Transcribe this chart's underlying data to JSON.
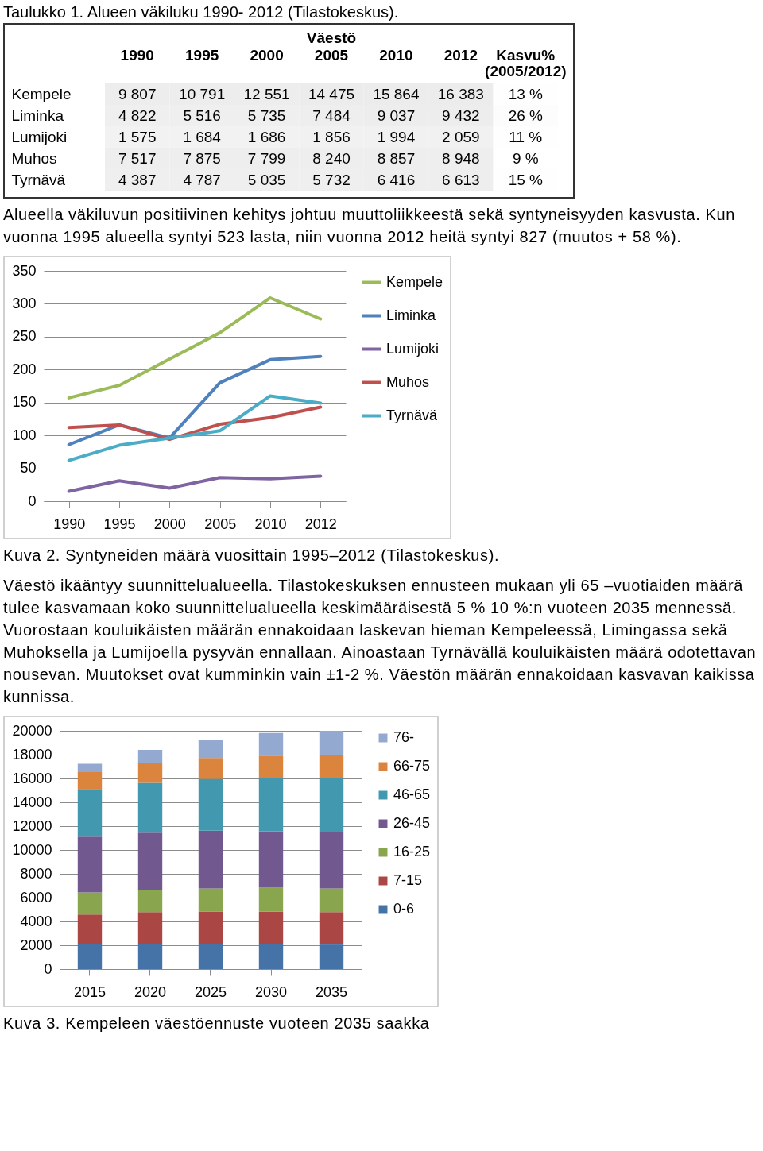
{
  "chart_data": [
    {
      "type": "heatmap",
      "title": "Taulukko 1. Alueen väkiluku 1990- 2012 (Tilastokeskus).",
      "subtitle": "Väestö",
      "categories": [
        "1990",
        "1995",
        "2000",
        "2005",
        "2010",
        "2012",
        "Kasvu% (2005/2012)"
      ],
      "y_categories": [
        "Kempele",
        "Liminka",
        "Lumijoki",
        "Muhos",
        "Tyrnävä"
      ],
      "cells": [
        [
          9807,
          10791,
          12551,
          14475,
          15864,
          16383,
          13
        ],
        [
          4822,
          5516,
          5735,
          7484,
          9037,
          9432,
          26
        ],
        [
          1575,
          1684,
          1686,
          1856,
          1994,
          2059,
          11
        ],
        [
          7517,
          7875,
          7799,
          8240,
          8857,
          8948,
          9
        ],
        [
          4387,
          4787,
          5035,
          5732,
          6416,
          6613,
          15
        ]
      ],
      "cell_labels": [
        [
          "9 807",
          "10 791",
          "12 551",
          "14 475",
          "15 864",
          "16 383",
          "13 %"
        ],
        [
          "4 822",
          "5 516",
          "5 735",
          "7 484",
          "9 037",
          "9 432",
          "26 %"
        ],
        [
          "1 575",
          "1 684",
          "1 686",
          "1 856",
          "1 994",
          "2 059",
          "11 %"
        ],
        [
          "7 517",
          "7 875",
          "7 799",
          "8 240",
          "8 857",
          "8 948",
          "9 %"
        ],
        [
          "4 387",
          "4 787",
          "5 035",
          "5 732",
          "6 416",
          "6 613",
          "15 %"
        ]
      ],
      "annotations": [
        "Alueella väkiluvun positiivinen kehitys johtuu muuttoliikkeestä sekä syntyneisyyden kasvusta. Kun vuonna 1995 alueella syntyi 523 lasta, niin vuonna 2012 heitä syntyi 827 (muutos + 58 %)."
      ]
    },
    {
      "type": "line",
      "categories": [
        "1990",
        "1995",
        "2000",
        "2005",
        "2010",
        "2012"
      ],
      "series": [
        {
          "name": "Kempele",
          "color": "#9bbb59",
          "values": [
            157,
            176,
            216,
            256,
            309,
            277
          ]
        },
        {
          "name": "Liminka",
          "color": "#4f81bd",
          "values": [
            86,
            116,
            96,
            180,
            215,
            220
          ]
        },
        {
          "name": "Lumijoki",
          "color": "#8064a2",
          "values": [
            15,
            31,
            20,
            36,
            34,
            38
          ]
        },
        {
          "name": "Muhos",
          "color": "#c0504d",
          "values": [
            112,
            116,
            94,
            117,
            127,
            143
          ]
        },
        {
          "name": "Tyrnävä",
          "color": "#4bacc6",
          "values": [
            62,
            85,
            96,
            107,
            160,
            149
          ]
        }
      ],
      "ylim": [
        0,
        350
      ],
      "yticks": [
        0,
        50,
        100,
        150,
        200,
        250,
        300,
        350
      ],
      "grid": "y",
      "legend": "right",
      "marker": "none",
      "annotations": [
        "Kuva 2. Syntyneiden määrä vuosittain 1995–2012 (Tilastokeskus).",
        "Väestö ikääntyy suunnittelualueella. Tilastokeskuksen ennusteen mukaan yli 65 –vuotiaiden määrä tulee kasvamaan koko suunnittelualueella keskimääräisestä 5 % 10 %:n vuoteen 2035 mennessä. Vuorostaan kouluikäisten määrän ennakoidaan laskevan hieman Kempeleessä, Limingassa sekä Muhoksella ja Lumijoella pysyvän ennallaan. Ainoastaan Tyrnävällä kouluikäisten määrä odotettavan nousevan. Muutokset ovat kumminkin vain ±1-2 %. Väestön määrän ennakoidaan kasvavan kaikissa kunnissa."
      ]
    },
    {
      "type": "bar",
      "stacked": true,
      "categories": [
        "2015",
        "2020",
        "2025",
        "2030",
        "2035"
      ],
      "series": [
        {
          "name": "0-6",
          "color": "#4572a7",
          "values": [
            2130,
            2130,
            2130,
            2060,
            2060
          ]
        },
        {
          "name": "7-15",
          "color": "#aa4643",
          "values": [
            2450,
            2660,
            2700,
            2770,
            2730
          ]
        },
        {
          "name": "16-25",
          "color": "#89a54e",
          "values": [
            1850,
            1830,
            1940,
            2000,
            1980
          ]
        },
        {
          "name": "26-45",
          "color": "#71588f",
          "values": [
            4680,
            4830,
            4850,
            4740,
            4760
          ]
        },
        {
          "name": "46-65",
          "color": "#4198af",
          "values": [
            4000,
            4190,
            4340,
            4450,
            4470
          ]
        },
        {
          "name": "66-75",
          "color": "#db843d",
          "values": [
            1430,
            1700,
            1760,
            1890,
            1940
          ]
        },
        {
          "name": "76-",
          "color": "#93a9cf",
          "values": [
            700,
            1060,
            1490,
            1900,
            2060
          ]
        }
      ],
      "ylim": [
        0,
        20000
      ],
      "yticks": [
        0,
        2000,
        4000,
        6000,
        8000,
        10000,
        12000,
        14000,
        16000,
        18000,
        20000
      ],
      "grid": "y",
      "legend": "right",
      "annotations": [
        "Kuva 3. Kempeleen väestöennuste vuoteen 2035 saakka"
      ]
    }
  ]
}
